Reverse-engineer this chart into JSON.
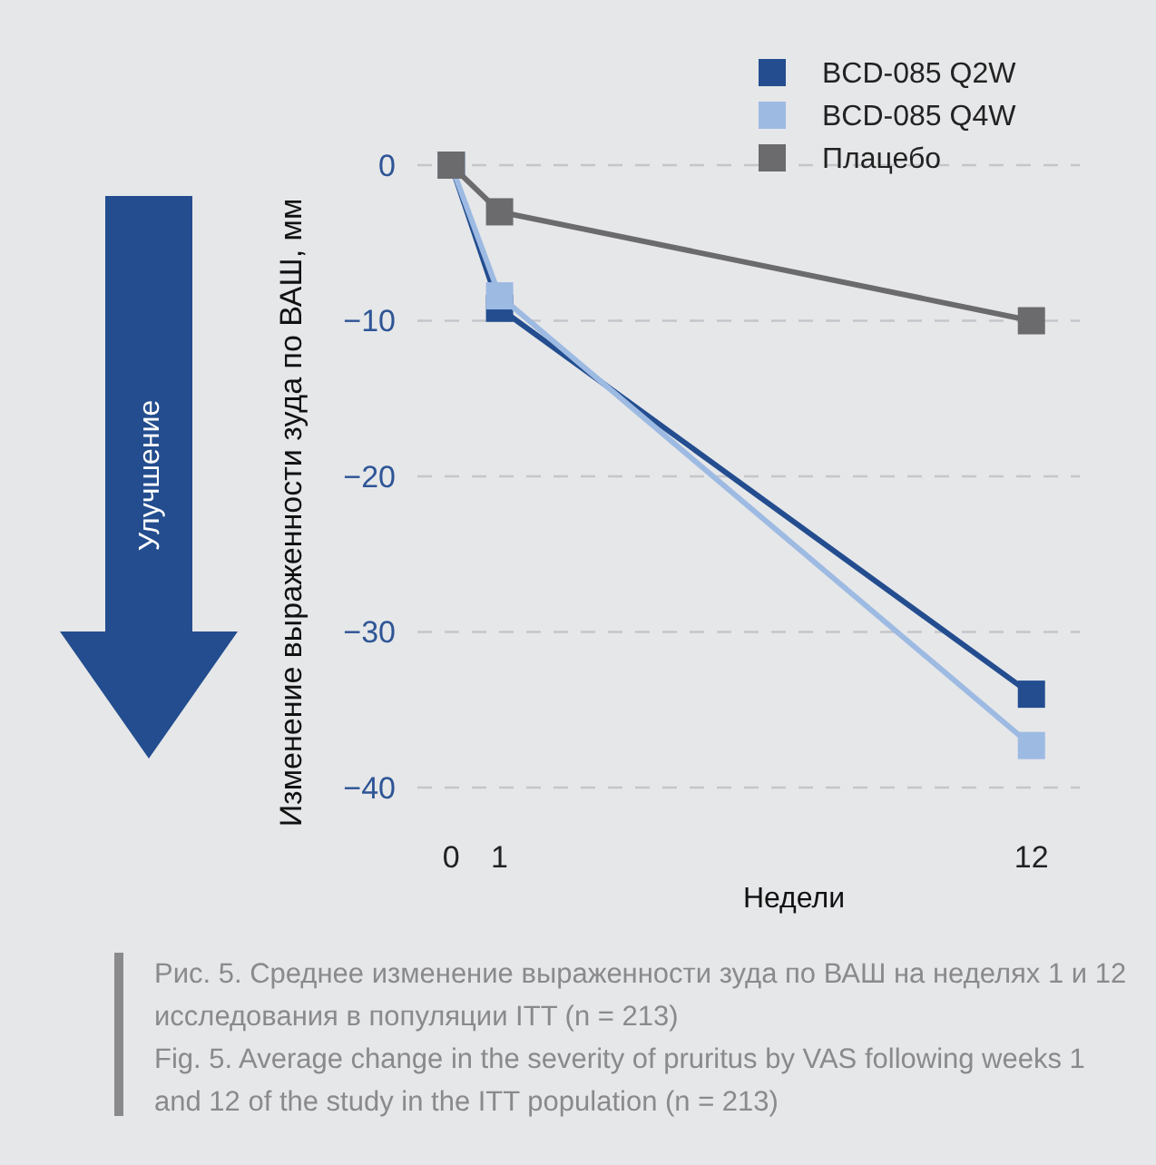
{
  "chart_data": {
    "type": "line",
    "xlabel": "Недели",
    "ylabel": "Изменение выраженности зуда по ВАШ, мм",
    "x": [
      0,
      1,
      12
    ],
    "xlim": [
      -0.7,
      13
    ],
    "xticks": [
      0,
      1,
      12
    ],
    "ylim": [
      -40,
      0
    ],
    "yticks": [
      {
        "value": 0,
        "label": "0"
      },
      {
        "value": -10,
        "label": "−10"
      },
      {
        "value": -20,
        "label": "−20"
      },
      {
        "value": -30,
        "label": "−30"
      },
      {
        "value": -40,
        "label": "−40"
      }
    ],
    "series": [
      {
        "name": "BCD-085 Q2W",
        "color": "#234d8f",
        "values": [
          0,
          -9.2,
          -34
        ]
      },
      {
        "name": "BCD-085 Q4W",
        "color": "#9dbae2",
        "values": [
          0,
          -8.4,
          -37.3
        ]
      },
      {
        "name": "Плацебо",
        "color": "#6b6b6e",
        "values": [
          0,
          -3,
          -10
        ]
      }
    ],
    "marker": "square",
    "line_style": "solid",
    "grid": "y",
    "legend": "top right",
    "annotations": [
      "Улучшение",
      "Рис. 5. Среднее изменение выраженности зуда по ВАШ на неделях 1 и 12 исследования в популяции ITT (n = 213)",
      "Fig. 5. Average change in the severity of pruritus by VAS following weeks 1 and 12 of the study in the ITT population (n = 213)"
    ]
  }
}
